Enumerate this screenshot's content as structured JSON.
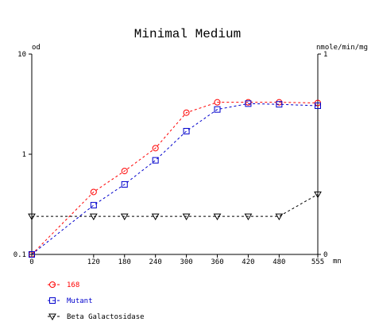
{
  "chart_data": {
    "type": "line",
    "title": "Minimal Medium",
    "left_axis": {
      "label": "od",
      "scale": "log",
      "range": [
        0.1,
        10
      ],
      "ticks": [
        "0.1",
        "1",
        "10"
      ]
    },
    "right_axis": {
      "label": "nmole/min/mg",
      "scale": "linear",
      "range": [
        0,
        1
      ],
      "ticks": [
        "0",
        "1"
      ]
    },
    "x_axis": {
      "label": "mn",
      "range": [
        0,
        555
      ],
      "ticks": [
        "0",
        "120",
        "180",
        "240",
        "300",
        "360",
        "420",
        "480",
        "555"
      ]
    },
    "x": [
      0,
      120,
      180,
      240,
      300,
      360,
      420,
      480,
      555
    ],
    "grid": false,
    "legend_position": "bottom-left",
    "series": [
      {
        "name": "168",
        "axis": "left",
        "color": "#ff0000",
        "marker": "circle",
        "line": "dashed",
        "values": [
          0.1,
          0.42,
          0.68,
          1.15,
          2.6,
          3.3,
          3.3,
          3.3,
          3.25
        ]
      },
      {
        "name": "Mutant",
        "axis": "left",
        "color": "#0000cc",
        "marker": "square",
        "line": "dashed",
        "values": [
          0.1,
          0.31,
          0.5,
          0.87,
          1.7,
          2.8,
          3.2,
          3.15,
          3.05
        ]
      },
      {
        "name": "Beta Galactosidase",
        "axis": "right",
        "color": "#000000",
        "marker": "triangle-down",
        "line": "dashed",
        "values": [
          0.19,
          0.19,
          0.19,
          0.19,
          0.19,
          0.19,
          0.19,
          0.19,
          0.3
        ]
      }
    ]
  }
}
